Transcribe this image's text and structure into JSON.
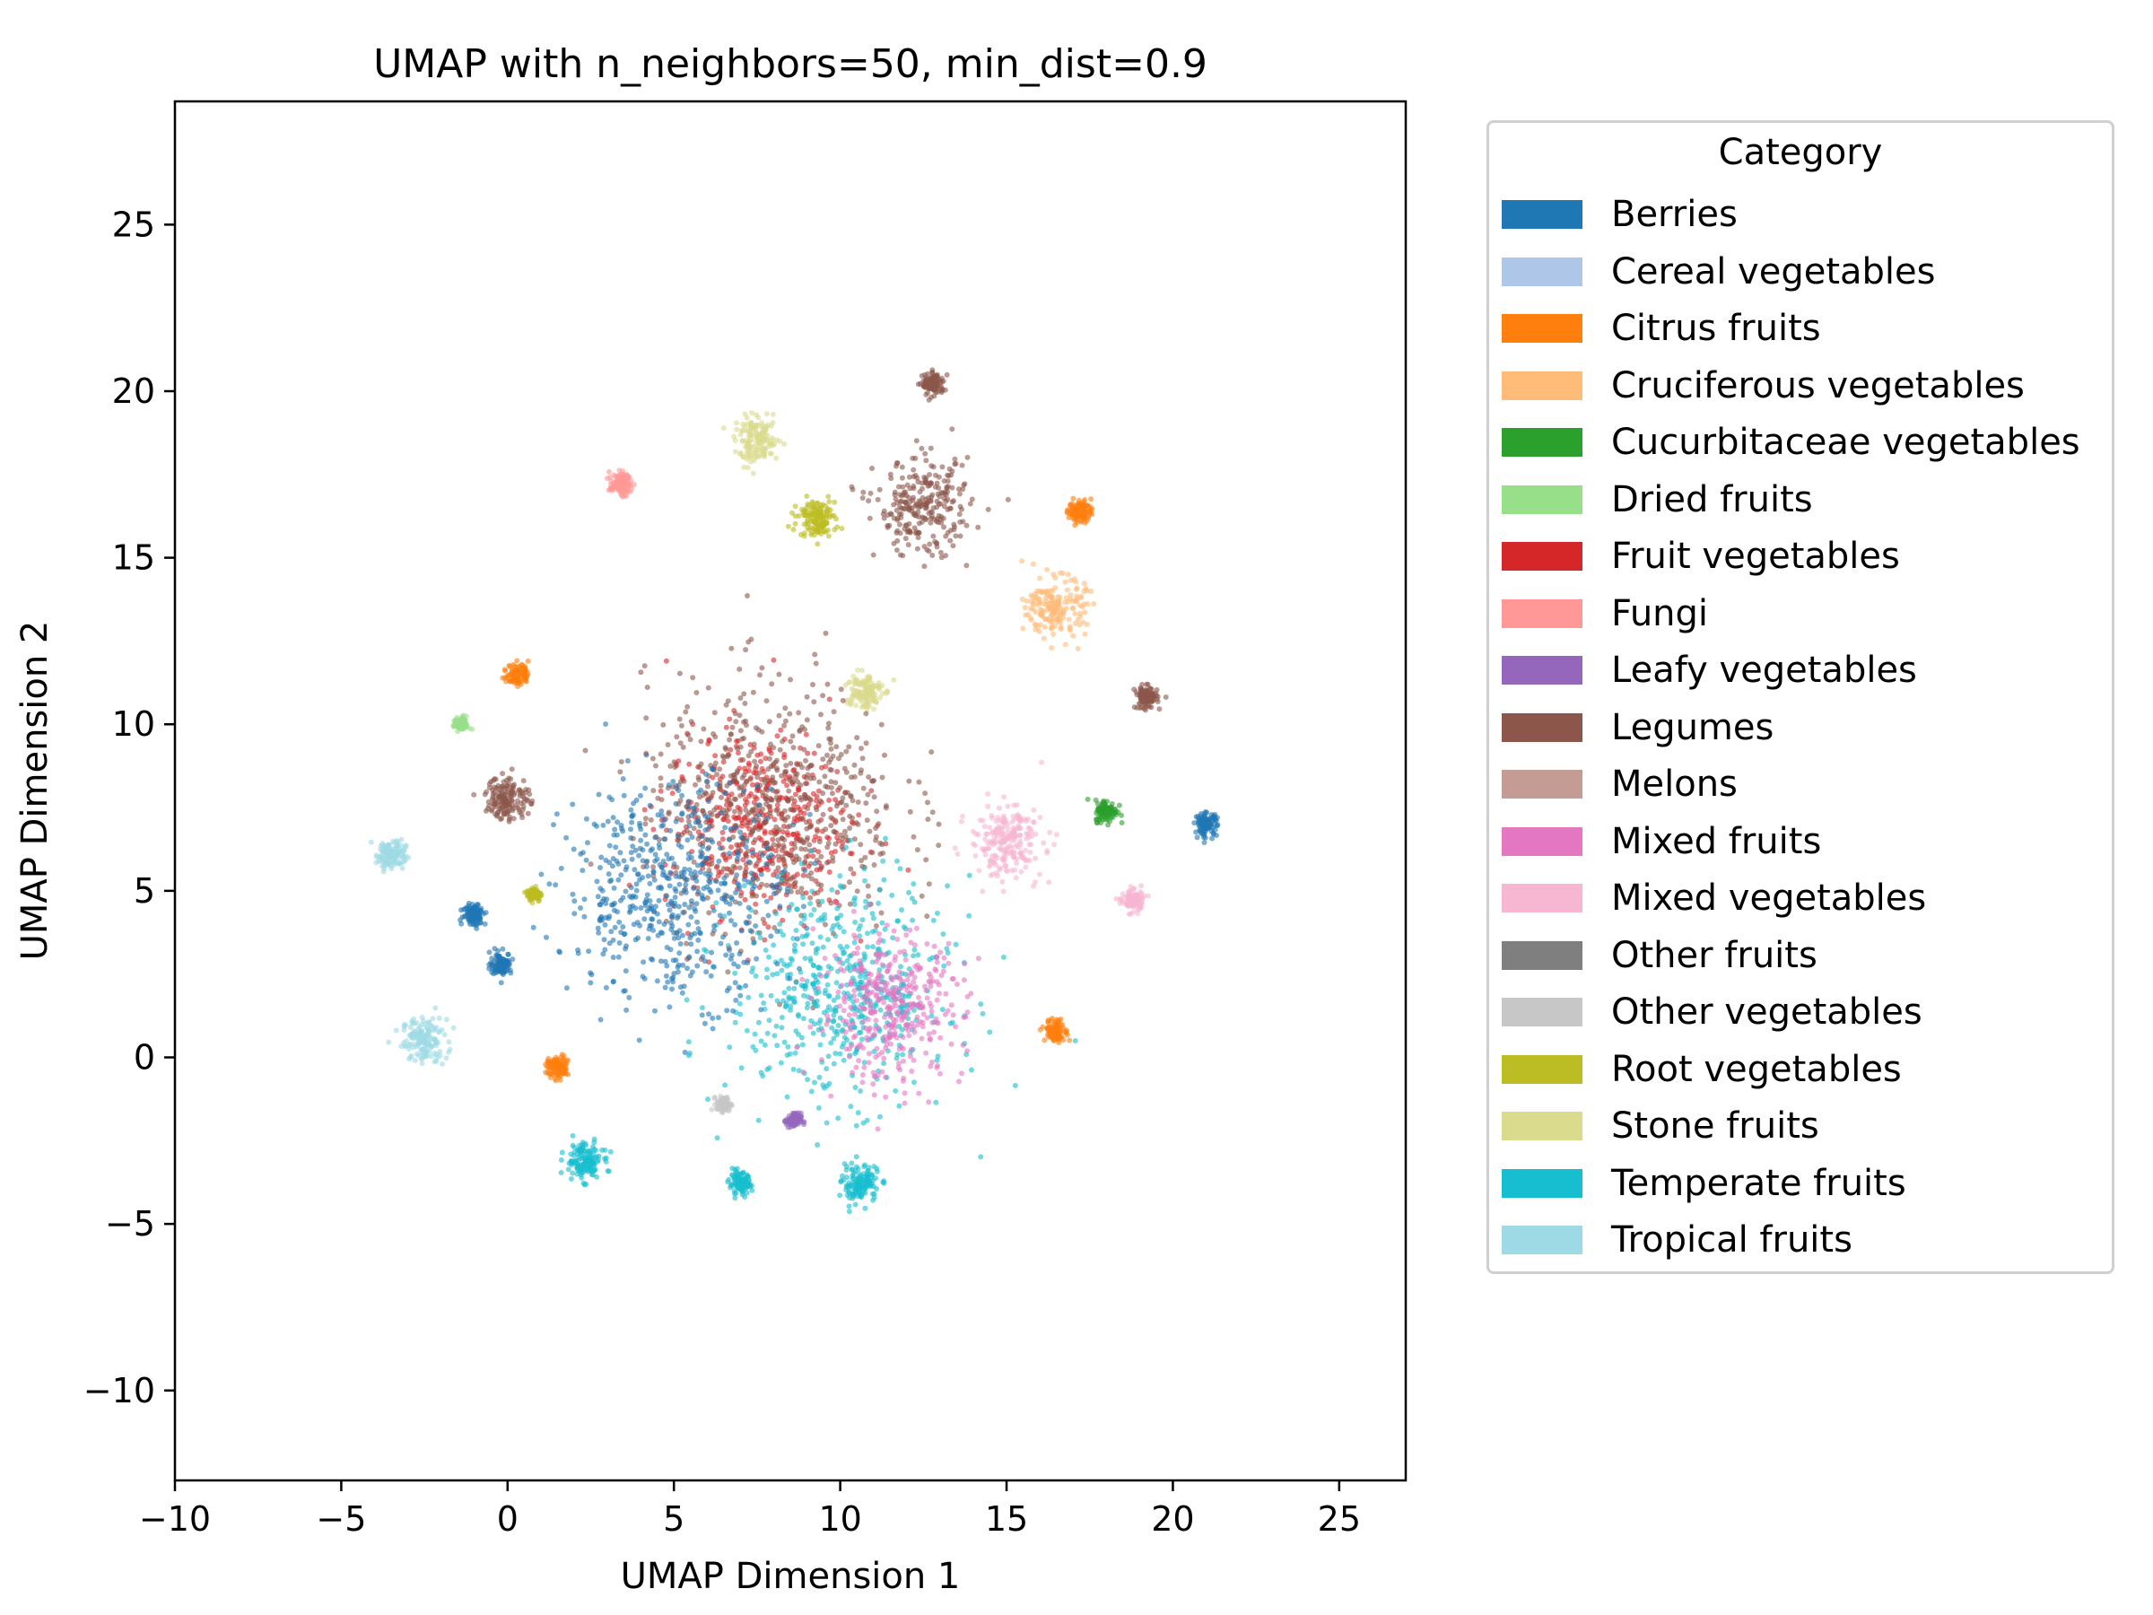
{
  "chart_data": {
    "type": "scatter",
    "title": "UMAP with n_neighbors=50, min_dist=0.9",
    "xlabel": "UMAP Dimension 1",
    "ylabel": "UMAP Dimension 2",
    "xlim": [
      -10,
      27
    ],
    "ylim": [
      -12.7,
      28.7
    ],
    "xticks": [
      -10,
      -5,
      0,
      5,
      10,
      15,
      20,
      25
    ],
    "yticks": [
      -10,
      -5,
      0,
      5,
      10,
      15,
      20,
      25
    ],
    "xtick_labels": [
      "−10",
      "−5",
      "0",
      "5",
      "10",
      "15",
      "20",
      "25"
    ],
    "ytick_labels": [
      "−10",
      "−5",
      "0",
      "5",
      "10",
      "15",
      "20",
      "25"
    ],
    "grid": false,
    "legend": {
      "title": "Category",
      "placement": "outside-right",
      "entries": [
        {
          "label": "Berries",
          "color": "#1f77b4"
        },
        {
          "label": "Cereal vegetables",
          "color": "#aec7e8"
        },
        {
          "label": "Citrus fruits",
          "color": "#ff7f0e"
        },
        {
          "label": "Cruciferous vegetables",
          "color": "#ffbb78"
        },
        {
          "label": "Cucurbitaceae vegetables",
          "color": "#2ca02c"
        },
        {
          "label": "Dried fruits",
          "color": "#98df8a"
        },
        {
          "label": "Fruit vegetables",
          "color": "#d62728"
        },
        {
          "label": "Fungi",
          "color": "#ff9896"
        },
        {
          "label": "Leafy vegetables",
          "color": "#9467bd"
        },
        {
          "label": "Legumes",
          "color": "#8c564b"
        },
        {
          "label": "Melons",
          "color": "#c49c94"
        },
        {
          "label": "Mixed fruits",
          "color": "#e377c2"
        },
        {
          "label": "Mixed vegetables",
          "color": "#f7b6d2"
        },
        {
          "label": "Other fruits",
          "color": "#7f7f7f"
        },
        {
          "label": "Other vegetables",
          "color": "#c7c7c7"
        },
        {
          "label": "Root vegetables",
          "color": "#bcbd22"
        },
        {
          "label": "Stone fruits",
          "color": "#dbdb8d"
        },
        {
          "label": "Temperate fruits",
          "color": "#17becf"
        },
        {
          "label": "Tropical fruits",
          "color": "#9edae5"
        }
      ]
    },
    "clusters": [
      {
        "category": "Tropical fruits",
        "x": -2.5,
        "y": 0.5,
        "spread": 0.6
      },
      {
        "category": "Tropical fruits",
        "x": -3.5,
        "y": 6.1,
        "spread": 0.4
      },
      {
        "category": "Temperate fruits",
        "x": 2.3,
        "y": -3.1,
        "spread": 0.5
      },
      {
        "category": "Temperate fruits",
        "x": 10.6,
        "y": -3.8,
        "spread": 0.5
      },
      {
        "category": "Temperate fruits",
        "x": 7.0,
        "y": -3.8,
        "spread": 0.3
      },
      {
        "category": "Berries",
        "x": 21.0,
        "y": 7.0,
        "spread": 0.3
      },
      {
        "category": "Berries",
        "x": -1.0,
        "y": 4.3,
        "spread": 0.3
      },
      {
        "category": "Berries",
        "x": -0.2,
        "y": 2.8,
        "spread": 0.3
      },
      {
        "category": "Legumes",
        "x": 12.8,
        "y": 20.2,
        "spread": 0.3
      },
      {
        "category": "Legumes",
        "x": 12.5,
        "y": 16.5,
        "spread": 1.3
      },
      {
        "category": "Legumes",
        "x": 19.2,
        "y": 10.8,
        "spread": 0.3
      },
      {
        "category": "Legumes",
        "x": 0.0,
        "y": 7.8,
        "spread": 0.6
      },
      {
        "category": "Stone fruits",
        "x": 7.5,
        "y": 18.5,
        "spread": 0.6
      },
      {
        "category": "Root vegetables",
        "x": 9.3,
        "y": 16.2,
        "spread": 0.5
      },
      {
        "category": "Stone fruits",
        "x": 10.7,
        "y": 11.0,
        "spread": 0.5
      },
      {
        "category": "Cruciferous vegetables",
        "x": 16.5,
        "y": 13.5,
        "spread": 0.8
      },
      {
        "category": "Mixed vegetables",
        "x": 18.8,
        "y": 4.7,
        "spread": 0.3
      },
      {
        "category": "Mixed vegetables",
        "x": 15.0,
        "y": 6.5,
        "spread": 1.0
      },
      {
        "category": "Fungi",
        "x": 3.4,
        "y": 17.2,
        "spread": 0.3
      },
      {
        "category": "Citrus fruits",
        "x": 17.2,
        "y": 16.4,
        "spread": 0.3
      },
      {
        "category": "Citrus fruits",
        "x": 0.3,
        "y": 11.5,
        "spread": 0.3
      },
      {
        "category": "Citrus fruits",
        "x": 16.5,
        "y": 0.8,
        "spread": 0.3
      },
      {
        "category": "Citrus fruits",
        "x": 1.5,
        "y": -0.3,
        "spread": 0.3
      },
      {
        "category": "Dried fruits",
        "x": -1.4,
        "y": 10.0,
        "spread": 0.2
      },
      {
        "category": "Leafy vegetables",
        "x": 8.6,
        "y": -1.9,
        "spread": 0.2
      },
      {
        "category": "Other vegetables",
        "x": 6.5,
        "y": -1.4,
        "spread": 0.2
      },
      {
        "category": "Root vegetables",
        "x": 0.8,
        "y": 4.9,
        "spread": 0.2
      },
      {
        "category": "Cucurbitaceae vegetables",
        "x": 18.0,
        "y": 7.4,
        "spread": 0.3
      },
      {
        "category": "Fruit vegetables",
        "x": 7.5,
        "y": 7.0,
        "spread": 2.5
      },
      {
        "category": "Legumes",
        "x": 8.0,
        "y": 7.5,
        "spread": 3.5
      },
      {
        "category": "Temperate fruits",
        "x": 10.0,
        "y": 2.0,
        "spread": 3.0
      },
      {
        "category": "Berries",
        "x": 5.0,
        "y": 5.0,
        "spread": 3.0
      },
      {
        "category": "Mixed fruits",
        "x": 11.5,
        "y": 1.5,
        "spread": 2.0
      }
    ]
  }
}
